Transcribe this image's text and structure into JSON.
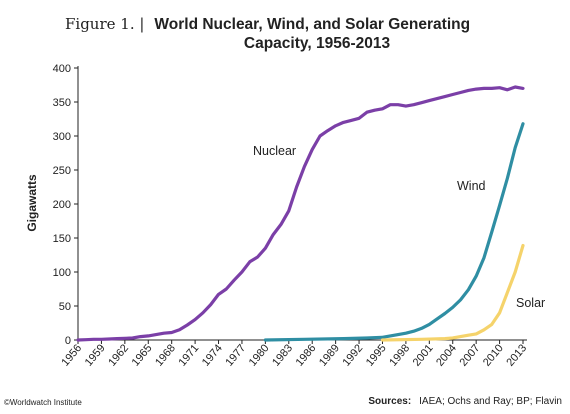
{
  "title": {
    "prefix": "Figure 1. |",
    "line1": "World Nuclear, Wind, and Solar Generating",
    "line2": "Capacity, 1956-2013"
  },
  "footer": {
    "credit": "©Worldwatch Institute",
    "sources_label": "Sources:",
    "sources_text": "IAEA; Ochs and Ray;  BP; Flavin"
  },
  "colors": {
    "nuclear": "#7b3fa7",
    "wind": "#2f8ea3",
    "solar": "#f5d36b",
    "axis": "#222222"
  },
  "chart_data": {
    "type": "line",
    "ylabel": "Gigawatts",
    "xlabel": "",
    "xlim": [
      1956,
      2013
    ],
    "ylim": [
      0,
      400
    ],
    "yticks": [
      0,
      50,
      100,
      150,
      200,
      250,
      300,
      350,
      400
    ],
    "xticks": [
      1956,
      1959,
      1962,
      1965,
      1968,
      1971,
      1974,
      1977,
      1980,
      1983,
      1986,
      1989,
      1992,
      1995,
      1998,
      2001,
      2004,
      2007,
      2010,
      2013
    ],
    "grid": false,
    "legend": "none",
    "series": [
      {
        "name": "Nuclear",
        "x": [
          1956,
          1957,
          1958,
          1959,
          1960,
          1961,
          1962,
          1963,
          1964,
          1965,
          1966,
          1967,
          1968,
          1969,
          1970,
          1971,
          1972,
          1973,
          1974,
          1975,
          1976,
          1977,
          1978,
          1979,
          1980,
          1981,
          1982,
          1983,
          1984,
          1985,
          1986,
          1987,
          1988,
          1989,
          1990,
          1991,
          1992,
          1993,
          1994,
          1995,
          1996,
          1997,
          1998,
          1999,
          2000,
          2001,
          2002,
          2003,
          2004,
          2005,
          2006,
          2007,
          2008,
          2009,
          2010,
          2011,
          2012,
          2013
        ],
        "values": [
          0,
          0.5,
          1,
          1,
          1.5,
          2,
          2.5,
          3,
          5,
          6,
          8,
          10,
          11,
          15,
          22,
          30,
          40,
          52,
          67,
          75,
          88,
          100,
          115,
          122,
          135,
          155,
          170,
          190,
          225,
          255,
          280,
          300,
          308,
          315,
          320,
          323,
          326,
          335,
          338,
          340,
          346,
          346,
          344,
          346,
          349,
          352,
          355,
          358,
          361,
          364,
          367,
          369,
          370,
          370,
          371,
          368,
          372,
          370
        ]
      },
      {
        "name": "Wind",
        "x": [
          1980,
          1985,
          1990,
          1993,
          1995,
          1996,
          1997,
          1998,
          1999,
          2000,
          2001,
          2002,
          2003,
          2004,
          2005,
          2006,
          2007,
          2008,
          2009,
          2010,
          2011,
          2012,
          2013
        ],
        "values": [
          0,
          1,
          2,
          3,
          4,
          6,
          8,
          10,
          13,
          17,
          23,
          31,
          39,
          48,
          59,
          74,
          94,
          121,
          159,
          198,
          238,
          283,
          318
        ]
      },
      {
        "name": "Solar",
        "x": [
          1995,
          2000,
          2003,
          2004,
          2005,
          2006,
          2007,
          2008,
          2009,
          2010,
          2011,
          2012,
          2013
        ],
        "values": [
          0,
          1,
          2,
          3,
          5,
          7,
          9,
          15,
          23,
          40,
          70,
          100,
          139
        ]
      }
    ]
  }
}
